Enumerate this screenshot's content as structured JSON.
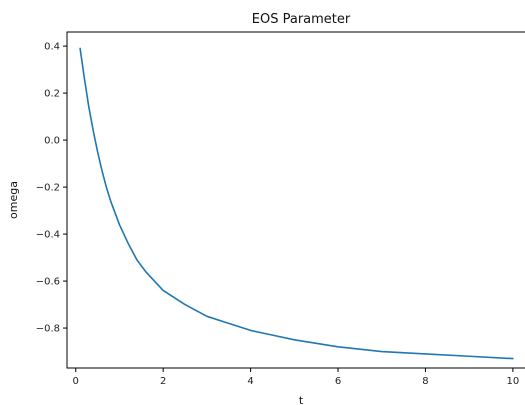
{
  "chart_data": {
    "type": "line",
    "title": "EOS Parameter",
    "xlabel": "t",
    "ylabel": "omega",
    "xlim": [
      -0.2,
      10.3
    ],
    "ylim": [
      -0.97,
      0.46
    ],
    "x_ticks": [
      0,
      2,
      4,
      6,
      8,
      10
    ],
    "y_ticks": [
      0.4,
      0.2,
      0.0,
      -0.2,
      -0.4,
      -0.6,
      -0.8
    ],
    "x_tick_labels": [
      "0",
      "2",
      "4",
      "6",
      "8",
      "10"
    ],
    "y_tick_labels": [
      "0.4",
      "0.2",
      "0.0",
      "−0.2",
      "−0.4",
      "−0.6",
      "−0.8"
    ],
    "grid": false,
    "series": [
      {
        "color": "#1f77b4",
        "x": [
          0.1,
          0.2,
          0.3,
          0.4,
          0.5,
          0.6,
          0.7,
          0.8,
          0.9,
          1.0,
          1.2,
          1.4,
          1.6,
          1.8,
          2.0,
          2.5,
          3.0,
          3.5,
          4.0,
          4.5,
          5.0,
          6.0,
          7.0,
          8.0,
          9.0,
          10.0
        ],
        "y": [
          0.39,
          0.26,
          0.14,
          0.04,
          -0.05,
          -0.13,
          -0.2,
          -0.26,
          -0.31,
          -0.36,
          -0.44,
          -0.51,
          -0.56,
          -0.6,
          -0.64,
          -0.7,
          -0.75,
          -0.78,
          -0.81,
          -0.83,
          -0.85,
          -0.88,
          -0.9,
          -0.91,
          -0.92,
          -0.93
        ]
      }
    ]
  }
}
